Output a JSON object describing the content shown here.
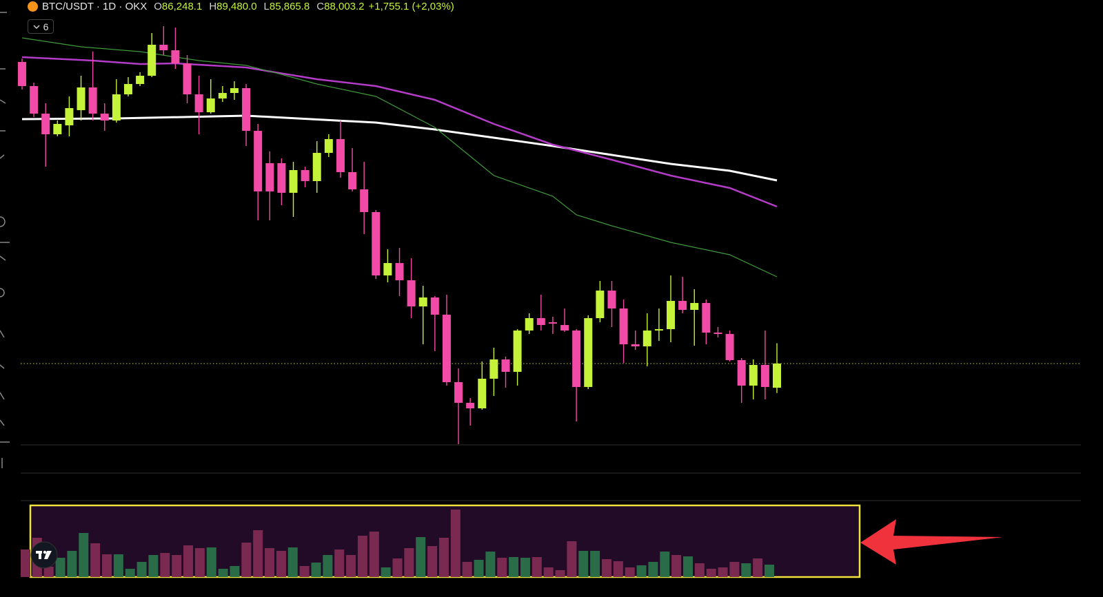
{
  "header": {
    "symbol": "BTC/USDT · 1D · OKX",
    "open_key": "O",
    "open": "86,248.1",
    "high_key": "H",
    "high": "89,480.0",
    "low_key": "L",
    "low": "85,865.8",
    "close_key": "C",
    "close": "88,003.2",
    "change": "+1,755.1 (+2,03%)",
    "indicator_count": "6"
  },
  "chart_data": {
    "type": "candlestick",
    "up_color": "#c4f33a",
    "down_color": "#f24ba7",
    "ylim": [
      81903,
      114403
    ],
    "open": [
      109903,
      108153,
      106153,
      104653,
      105303,
      106403,
      108053,
      106153,
      105653,
      107553,
      108303,
      108903,
      111153,
      110753,
      109803,
      107553,
      106253,
      107253,
      107653,
      108003,
      104903,
      102553,
      102553,
      100403,
      102053,
      101253,
      103303,
      104303,
      101903,
      100653,
      99003,
      94403,
      95303,
      94053,
      92153,
      92803,
      91553,
      86653,
      85153,
      84753,
      86903,
      88303,
      87403,
      90403,
      91303,
      91003,
      90803,
      90403,
      86303,
      91303,
      93303,
      92003,
      89403,
      89253,
      90403,
      90503,
      92553,
      91903,
      92403,
      90253,
      90153,
      88253,
      86403,
      87903,
      86248.1
    ],
    "high": [
      110153,
      108403,
      106903,
      105653,
      107403,
      108903,
      110653,
      106903,
      108653,
      108803,
      109153,
      112003,
      112503,
      112403,
      110403,
      108903,
      108653,
      108153,
      108503,
      108303,
      105403,
      103403,
      102903,
      102653,
      102303,
      104153,
      104653,
      105653,
      103653,
      102653,
      99153,
      96303,
      96403,
      95653,
      93653,
      92903,
      93003,
      87653,
      85503,
      88153,
      89153,
      88503,
      90503,
      91653,
      93003,
      91403,
      92003,
      90503,
      91503,
      94003,
      94003,
      92653,
      90403,
      91653,
      92003,
      94403,
      94303,
      93403,
      92653,
      90653,
      90403,
      88403,
      88303,
      90403,
      89480.0
    ],
    "low": [
      107903,
      105903,
      102303,
      104503,
      104503,
      105653,
      105653,
      104903,
      105503,
      107403,
      108153,
      108803,
      110403,
      109403,
      106903,
      104653,
      106153,
      107003,
      107153,
      103803,
      98403,
      98403,
      99503,
      98653,
      100803,
      100403,
      103003,
      101503,
      100503,
      97403,
      94153,
      93903,
      92903,
      91303,
      89403,
      88903,
      86403,
      82153,
      83503,
      84653,
      85653,
      86253,
      86403,
      90153,
      90403,
      90153,
      90303,
      83803,
      86153,
      91003,
      90653,
      88053,
      89003,
      87803,
      89653,
      89553,
      91653,
      89303,
      89403,
      89903,
      88153,
      85153,
      85403,
      85403,
      85865.8
    ],
    "close": [
      108153,
      106153,
      104653,
      105403,
      106553,
      108053,
      106153,
      105653,
      107553,
      108303,
      108903,
      111153,
      110753,
      109803,
      107553,
      106253,
      107253,
      107653,
      108003,
      104903,
      100503,
      100503,
      100403,
      102053,
      101253,
      103303,
      104303,
      101903,
      100653,
      99003,
      94403,
      95303,
      94053,
      92153,
      92803,
      91553,
      86653,
      85153,
      84753,
      86903,
      88303,
      87403,
      90403,
      91303,
      90803,
      90903,
      90403,
      86303,
      91303,
      93303,
      92003,
      89403,
      89253,
      90403,
      90503,
      92553,
      91903,
      92403,
      90253,
      90153,
      88253,
      86403,
      87903,
      86303,
      88003.2
    ],
    "moving_averages": [
      {
        "color": "#ffffff",
        "width": 3,
        "x": [
          0,
          8,
          19,
          30,
          35,
          40,
          45,
          50,
          55,
          60,
          64
        ],
        "values": [
          105753,
          105803,
          106003,
          105503,
          105003,
          104403,
          103803,
          103153,
          102503,
          102003,
          101303
        ]
      },
      {
        "color": "#b43cc8",
        "width": 2.5,
        "x": [
          0,
          6,
          10,
          13,
          19,
          25,
          30,
          35,
          40,
          45,
          50,
          55,
          60,
          64
        ],
        "values": [
          110253,
          110003,
          109753,
          109803,
          109503,
          108653,
          108153,
          107153,
          105403,
          103903,
          102803,
          101653,
          100753,
          99403
        ]
      },
      {
        "color": "#3f9a3a",
        "width": 1.2,
        "x": [
          0,
          5,
          10,
          15,
          19,
          22,
          25,
          30,
          35,
          40,
          45,
          47,
          50,
          55,
          60,
          64
        ],
        "values": [
          111653,
          111003,
          110653,
          110003,
          109653,
          109003,
          108303,
          107403,
          105153,
          101653,
          100153,
          98803,
          98003,
          96803,
          95903,
          94303
        ]
      }
    ],
    "last_price_color": "#c9d43a",
    "volume": {
      "ylim": [
        0,
        105
      ],
      "up_color": "#2a6c47",
      "down_color": "#7a2a50",
      "values": [
        40,
        57,
        15,
        28,
        38,
        64,
        49,
        33,
        33,
        12,
        22,
        32,
        35,
        32,
        46,
        42,
        43,
        12,
        16,
        50,
        68,
        42,
        38,
        43,
        16,
        21,
        32,
        40,
        32,
        60,
        66,
        14,
        27,
        42,
        58,
        45,
        57,
        98,
        22,
        25,
        37,
        28,
        29,
        28,
        29,
        14,
        10,
        52,
        38,
        38,
        26,
        23,
        14,
        17,
        22,
        37,
        32,
        30,
        20,
        12,
        14,
        22,
        20,
        27,
        18
      ]
    }
  }
}
